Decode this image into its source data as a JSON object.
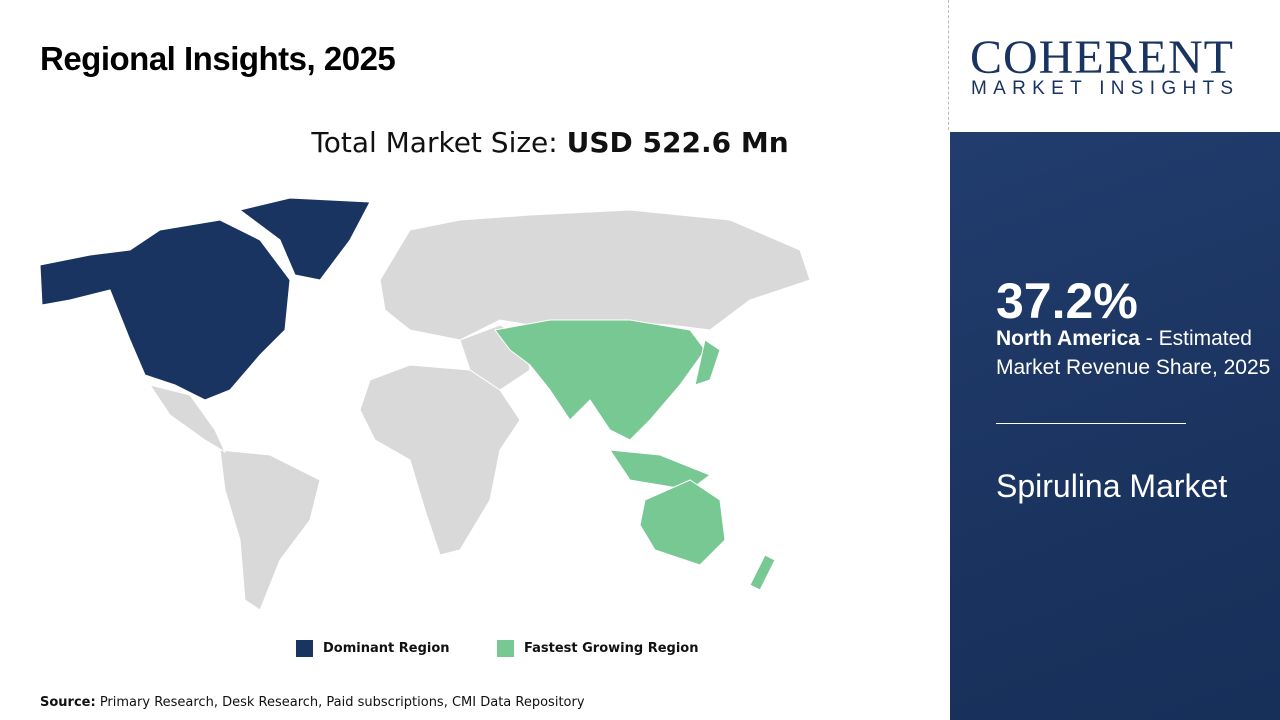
{
  "header": {
    "title": "Regional Insights, 2025"
  },
  "total": {
    "label": "Total Market Size: ",
    "value": "USD 522.6 Mn"
  },
  "colors": {
    "dominant": "#1a3461",
    "fastest": "#78c893",
    "other": "#d9d9d9",
    "panel": "#1b335f"
  },
  "map": {
    "dominant_region": "North America",
    "fastest_growing_region": "Asia Pacific"
  },
  "legend": [
    {
      "label": "Dominant Region",
      "color": "#1a3461"
    },
    {
      "label": "Fastest Growing Region",
      "color": "#78c893"
    }
  ],
  "source": {
    "label": "Source:",
    "text": " Primary Research, Desk Research, Paid subscriptions, CMI Data Repository"
  },
  "logo": {
    "line1": "COHERENT",
    "line2": "MARKET INSIGHTS"
  },
  "panel": {
    "share": "37.2%",
    "region": "North America",
    "desc": " - Estimated Market Revenue Share, 2025",
    "market": "Spirulina Market"
  }
}
